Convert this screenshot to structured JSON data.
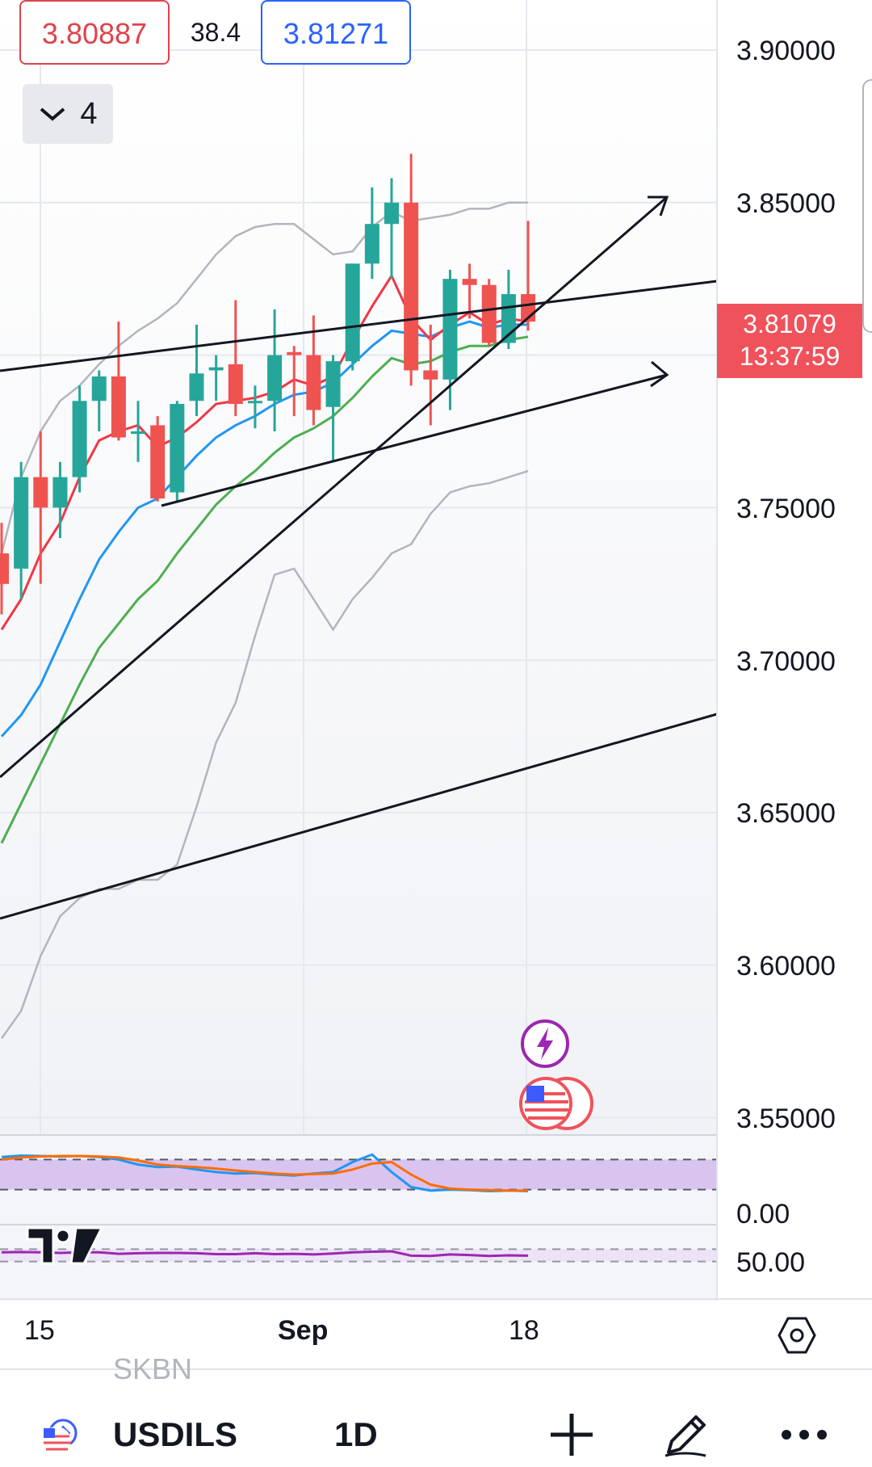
{
  "quote": {
    "bid": "3.80887",
    "spread": "38.4",
    "ask": "3.81271"
  },
  "indicators_toggle": {
    "count": "4"
  },
  "price_axis": {
    "labels": [
      "3.90000",
      "3.85000",
      "3.75000",
      "3.70000",
      "3.65000",
      "3.60000",
      "3.55000"
    ]
  },
  "last_price": {
    "price": "3.81079",
    "countdown": "13:37:59"
  },
  "oscillator_axis": {
    "label1": "0.00",
    "label2": "50.00"
  },
  "time_axis": {
    "labels": [
      "15",
      "Sep",
      "18"
    ]
  },
  "bottom_bar": {
    "prev_symbol": "SKBN",
    "symbol": "USDILS",
    "interval": "1D"
  },
  "icons": {
    "collapse": "chevron-down-icon",
    "settings": "hexagon-settings-icon",
    "add": "plus-icon",
    "draw": "pencil-icon",
    "more": "more-dots-icon",
    "flag": "us-il-flag-icon",
    "events": [
      "lightning-event-icon",
      "us-flag-event-icon"
    ],
    "logo": "tradingview-logo"
  },
  "colors": {
    "up": "#26a69a",
    "down": "#ef5350",
    "ema_fast": "#f23645",
    "ema_mid": "#2196f3",
    "ema_slow": "#4caf50",
    "bands": "#b2b5be",
    "stoch_k": "#2196f3",
    "stoch_d": "#ff6d00",
    "rsi": "#9c27b0",
    "band_fill": "#d9c4f0"
  },
  "chart_data": {
    "type": "candlestick",
    "symbol": "USDILS",
    "interval": "1D",
    "ylim": [
      3.55,
      3.9
    ],
    "candles": [
      {
        "o": 3.735,
        "h": 3.745,
        "l": 3.715,
        "c": 3.725
      },
      {
        "o": 3.73,
        "h": 3.765,
        "l": 3.72,
        "c": 3.76
      },
      {
        "o": 3.76,
        "h": 3.775,
        "l": 3.725,
        "c": 3.75
      },
      {
        "o": 3.75,
        "h": 3.765,
        "l": 3.74,
        "c": 3.76
      },
      {
        "o": 3.76,
        "h": 3.79,
        "l": 3.755,
        "c": 3.785
      },
      {
        "o": 3.785,
        "h": 3.795,
        "l": 3.775,
        "c": 3.793
      },
      {
        "o": 3.793,
        "h": 3.811,
        "l": 3.772,
        "c": 3.773
      },
      {
        "o": 3.775,
        "h": 3.785,
        "l": 3.765,
        "c": 3.775
      },
      {
        "o": 3.777,
        "h": 3.78,
        "l": 3.752,
        "c": 3.753
      },
      {
        "o": 3.755,
        "h": 3.785,
        "l": 3.752,
        "c": 3.784
      },
      {
        "o": 3.785,
        "h": 3.81,
        "l": 3.78,
        "c": 3.794
      },
      {
        "o": 3.795,
        "h": 3.8,
        "l": 3.785,
        "c": 3.796
      },
      {
        "o": 3.797,
        "h": 3.818,
        "l": 3.78,
        "c": 3.784
      },
      {
        "o": 3.785,
        "h": 3.79,
        "l": 3.776,
        "c": 3.785
      },
      {
        "o": 3.785,
        "h": 3.815,
        "l": 3.775,
        "c": 3.8
      },
      {
        "o": 3.801,
        "h": 3.803,
        "l": 3.78,
        "c": 3.8
      },
      {
        "o": 3.8,
        "h": 3.813,
        "l": 3.777,
        "c": 3.782
      },
      {
        "o": 3.783,
        "h": 3.8,
        "l": 3.765,
        "c": 3.798
      },
      {
        "o": 3.798,
        "h": 3.83,
        "l": 3.795,
        "c": 3.83
      },
      {
        "o": 3.83,
        "h": 3.855,
        "l": 3.825,
        "c": 3.843
      },
      {
        "o": 3.843,
        "h": 3.858,
        "l": 3.825,
        "c": 3.85
      },
      {
        "o": 3.85,
        "h": 3.866,
        "l": 3.79,
        "c": 3.795
      },
      {
        "o": 3.795,
        "h": 3.81,
        "l": 3.777,
        "c": 3.792
      },
      {
        "o": 3.792,
        "h": 3.828,
        "l": 3.782,
        "c": 3.825
      },
      {
        "o": 3.825,
        "h": 3.83,
        "l": 3.812,
        "c": 3.823
      },
      {
        "o": 3.823,
        "h": 3.825,
        "l": 3.803,
        "c": 3.804
      },
      {
        "o": 3.804,
        "h": 3.828,
        "l": 3.802,
        "c": 3.82
      },
      {
        "o": 3.82,
        "h": 3.844,
        "l": 3.808,
        "c": 3.811
      }
    ],
    "ema_fast": [
      3.71,
      3.72,
      3.735,
      3.745,
      3.76,
      3.772,
      3.775,
      3.777,
      3.77,
      3.773,
      3.778,
      3.784,
      3.785,
      3.786,
      3.788,
      3.792,
      3.79,
      3.793,
      3.805,
      3.816,
      3.826,
      3.812,
      3.805,
      3.81,
      3.814,
      3.81,
      3.812,
      3.811
    ],
    "ema_mid": [
      3.675,
      3.682,
      3.692,
      3.706,
      3.72,
      3.733,
      3.742,
      3.75,
      3.753,
      3.76,
      3.767,
      3.773,
      3.777,
      3.78,
      3.784,
      3.787,
      3.788,
      3.791,
      3.797,
      3.803,
      3.808,
      3.807,
      3.806,
      3.809,
      3.811,
      3.809,
      3.81,
      3.81
    ],
    "ema_slow": [
      3.64,
      3.653,
      3.666,
      3.679,
      3.692,
      3.704,
      3.712,
      3.72,
      3.726,
      3.735,
      3.743,
      3.751,
      3.757,
      3.762,
      3.768,
      3.773,
      3.776,
      3.78,
      3.786,
      3.793,
      3.799,
      3.797,
      3.798,
      3.801,
      3.803,
      3.803,
      3.805,
      3.806
    ],
    "bb_upper": [
      3.735,
      3.76,
      3.775,
      3.785,
      3.79,
      3.797,
      3.803,
      3.808,
      3.812,
      3.817,
      3.825,
      3.833,
      3.839,
      3.842,
      3.843,
      3.843,
      3.838,
      3.833,
      3.834,
      3.842,
      3.847,
      3.844,
      3.845,
      3.846,
      3.848,
      3.848,
      3.85,
      3.85
    ],
    "bb_lower": [
      3.576,
      3.585,
      3.603,
      3.616,
      3.622,
      3.625,
      3.625,
      3.628,
      3.628,
      3.633,
      3.652,
      3.673,
      3.686,
      3.708,
      3.728,
      3.73,
      3.72,
      3.71,
      3.72,
      3.727,
      3.735,
      3.738,
      3.748,
      3.755,
      3.757,
      3.758,
      3.76,
      3.762
    ],
    "stoch_k": [
      85,
      88,
      87,
      86,
      87,
      85,
      80,
      70,
      65,
      66,
      60,
      55,
      52,
      53,
      50,
      48,
      52,
      55,
      75,
      90,
      55,
      25,
      18,
      20,
      19,
      17,
      18,
      17
    ],
    "stoch_d": [
      80,
      84,
      86,
      87,
      87,
      86,
      84,
      78,
      70,
      67,
      65,
      62,
      58,
      55,
      52,
      50,
      51,
      52,
      60,
      72,
      75,
      50,
      30,
      22,
      20,
      19,
      18,
      18
    ],
    "rsi": [
      60,
      61,
      60,
      58,
      60,
      60,
      55,
      57,
      58,
      58,
      57,
      54,
      54,
      57,
      54,
      55,
      53,
      56,
      60,
      62,
      63,
      49,
      48,
      53,
      51,
      48,
      50,
      49
    ]
  }
}
